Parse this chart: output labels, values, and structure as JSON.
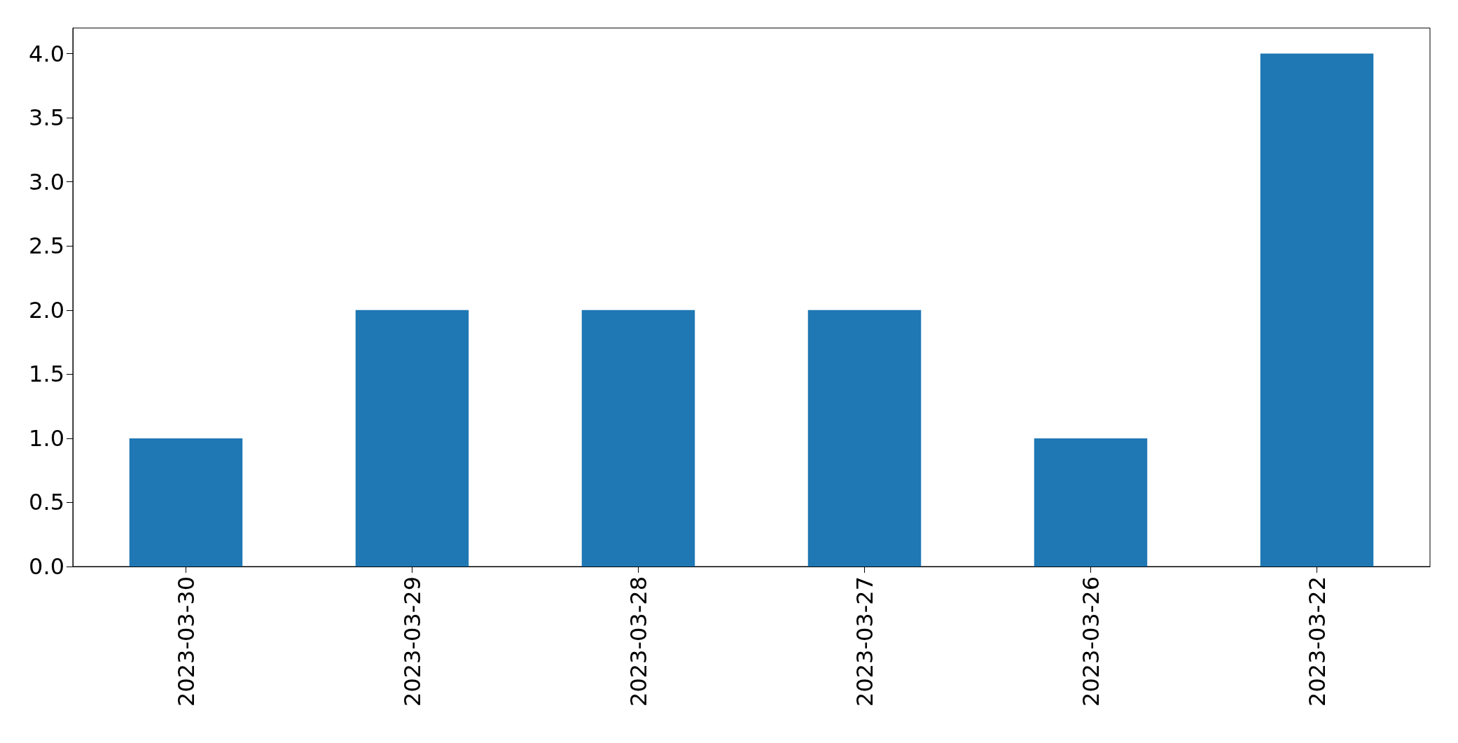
{
  "chart_data": {
    "type": "bar",
    "categories": [
      "2023-03-30",
      "2023-03-29",
      "2023-03-28",
      "2023-03-27",
      "2023-03-26",
      "2023-03-22"
    ],
    "values": [
      1,
      2,
      2,
      2,
      1,
      4
    ],
    "color": "#1f77b4",
    "ylim": [
      0,
      4.2
    ],
    "yticks": [
      {
        "value": 0,
        "label": "0.0"
      },
      {
        "value": 0.5,
        "label": "0.5"
      },
      {
        "value": 1,
        "label": "1.0"
      },
      {
        "value": 1.5,
        "label": "1.5"
      },
      {
        "value": 2,
        "label": "2.0"
      },
      {
        "value": 2.5,
        "label": "2.5"
      },
      {
        "value": 3,
        "label": "3.0"
      },
      {
        "value": 3.5,
        "label": "3.5"
      },
      {
        "value": 4,
        "label": "4.0"
      }
    ],
    "grid": false
  }
}
